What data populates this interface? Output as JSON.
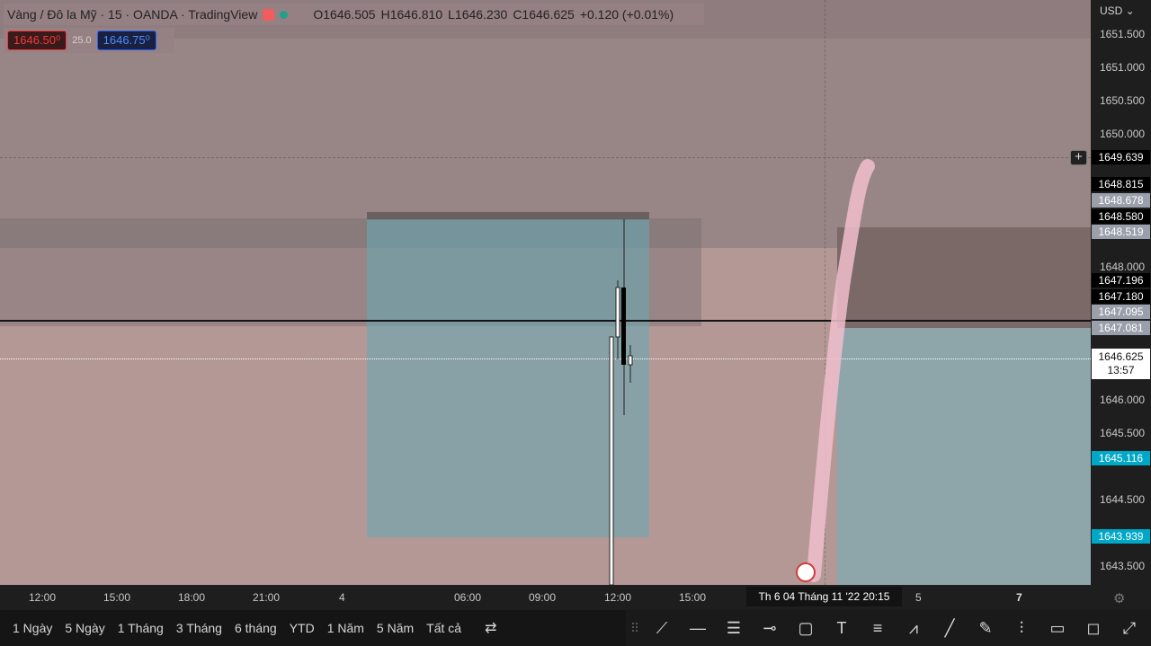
{
  "legend": {
    "symbol": "Vàng / Đô la Mỹ · 15 · OANDA · TradingView",
    "open": "O1646.505",
    "high": "H1646.810",
    "low": "L1646.230",
    "close": "C1646.625",
    "change": "+0.120 (+0.01%)"
  },
  "quotes": {
    "sell": "1646.50⁰",
    "spread": "25.0",
    "buy": "1646.75⁰"
  },
  "price_axis": {
    "currency": "USD",
    "ticks": [
      "1651.500",
      "1651.000",
      "1650.500",
      "1650.000",
      "1648.000",
      "1646.000",
      "1645.500",
      "1644.500",
      "1643.500"
    ],
    "tags": {
      "crosshair": "1649.639",
      "p1": "1648.815",
      "p2": "1648.678",
      "p3": "1648.580",
      "p4": "1648.519",
      "p5": "1647.196",
      "p6": "1647.180",
      "p7": "1647.095",
      "p8": "1647.081",
      "last": "1646.625",
      "countdown": "13:57",
      "c1": "1645.116",
      "c2": "1643.939"
    }
  },
  "time_axis": {
    "ticks": [
      "12:00",
      "15:00",
      "18:00",
      "21:00",
      "4",
      "06:00",
      "09:00",
      "12:00",
      "15:00",
      "5",
      "7"
    ],
    "crosshair": "Th 6 04 Tháng 11 '22   20:15"
  },
  "ranges": [
    "1 Ngày",
    "5 Ngày",
    "1 Tháng",
    "3 Tháng",
    "6 tháng",
    "YTD",
    "1 Năm",
    "5 Năm",
    "Tất cả"
  ],
  "icons": {
    "compare": "compare-icon",
    "tools": [
      "cursor-icon",
      "horizontal-line-icon",
      "parallel-channel-icon",
      "horizontal-ray-icon",
      "rectangle-icon",
      "text-icon",
      "fib-icon",
      "pattern-icon",
      "trend-line-icon",
      "brush-icon",
      "long-position-icon",
      "callout-icon",
      "comment-icon",
      "path-icon"
    ]
  },
  "colors": {
    "sell": "#f23b3b",
    "buy": "#2962ff",
    "candle_up": "#ffffff",
    "candle_down": "#000000",
    "cyan_tag": "#00a8c8"
  }
}
